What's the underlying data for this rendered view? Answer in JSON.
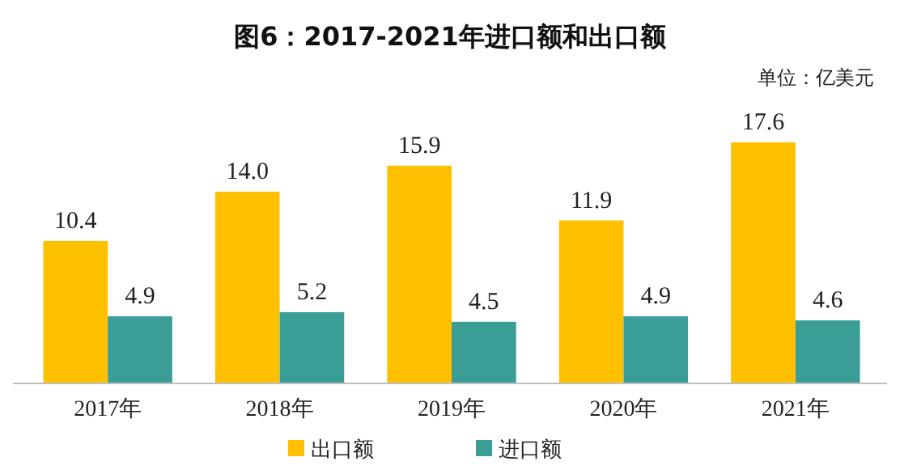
{
  "chart_data": {
    "type": "bar",
    "title": "图6：2017-2021年进口额和出口额",
    "annotations": [
      "单位：亿美元"
    ],
    "categories": [
      "2017年",
      "2018年",
      "2019年",
      "2020年",
      "2021年"
    ],
    "series": [
      {
        "name": "出口额",
        "color": "#ffc000",
        "values": [
          10.4,
          14.0,
          15.9,
          11.9,
          17.6
        ],
        "value_labels": [
          "10.4",
          "14.0",
          "15.9",
          "11.9",
          "17.6"
        ]
      },
      {
        "name": "进口额",
        "color": "#3a9e96",
        "values": [
          4.9,
          5.2,
          4.5,
          4.9,
          4.6
        ],
        "value_labels": [
          "4.9",
          "5.2",
          "4.5",
          "4.9",
          "4.6"
        ]
      }
    ],
    "legend": "bottom"
  }
}
